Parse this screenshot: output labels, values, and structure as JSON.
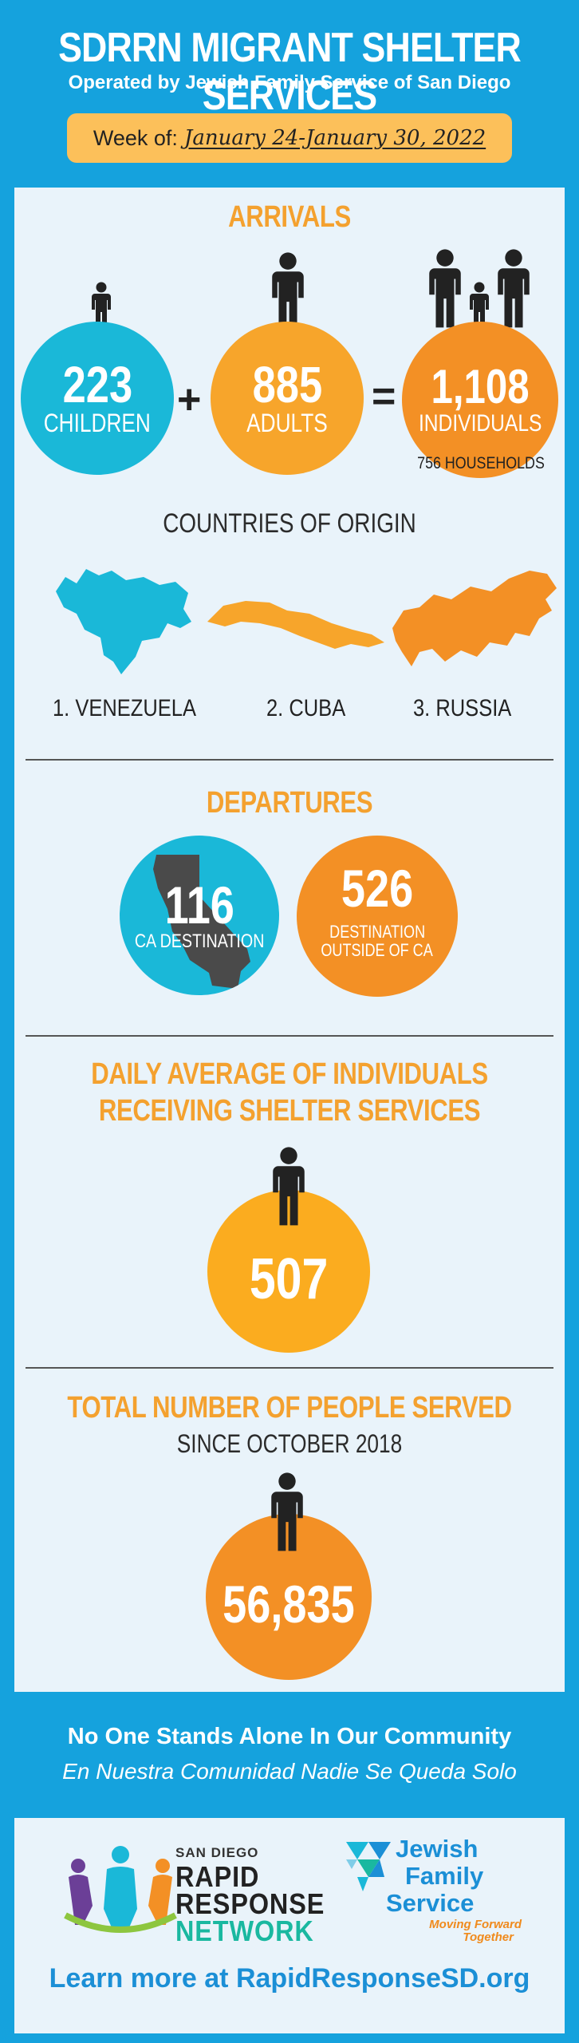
{
  "header": {
    "title": "SDRRN MIGRANT SHELTER SERVICES",
    "subtitle": "Operated by Jewish Family Service of San Diego",
    "week_label": "Week of:",
    "week_dates": "January 24-January 30, 2022"
  },
  "arrivals": {
    "title": "ARRIVALS",
    "children": {
      "value": "223",
      "label": "CHILDREN"
    },
    "plus": "+",
    "adults": {
      "value": "885",
      "label": "ADULTS"
    },
    "equals": "=",
    "individuals": {
      "value": "1,108",
      "label": "INDIVIDUALS"
    },
    "households": "756 HOUSEHOLDS"
  },
  "origin": {
    "title": "COUNTRIES OF ORIGIN",
    "countries": [
      "1. VENEZUELA",
      "2. CUBA",
      "3. RUSSIA"
    ]
  },
  "departures": {
    "title": "DEPARTURES",
    "ca": {
      "value": "116",
      "label": "CA DESTINATION"
    },
    "outside": {
      "value": "526",
      "label_line1": "DESTINATION",
      "label_line2": "OUTSIDE OF CA"
    }
  },
  "daily": {
    "title_line1": "DAILY AVERAGE OF INDIVIDUALS",
    "title_line2": "RECEIVING SHELTER SERVICES",
    "value": "507"
  },
  "total": {
    "title": "TOTAL NUMBER OF PEOPLE SERVED",
    "subtitle": "SINCE OCTOBER 2018",
    "value": "56,835"
  },
  "footer": {
    "line1": "No One Stands Alone In Our Community",
    "line2": "En Nuestra Comunidad Nadie Se Queda Solo",
    "rrn_small": "SAN DIEGO",
    "rrn_line1": "RAPID",
    "rrn_line2": "RESPONSE",
    "rrn_line3": "NETWORK",
    "jfs_line1": "Jewish",
    "jfs_line2": "Family",
    "jfs_line3": "Service",
    "jfs_tag1": "Moving Forward",
    "jfs_tag2": "Together",
    "learn_more": "Learn more at RapidResponseSD.org"
  },
  "colors": {
    "blue": "#15a2dd",
    "cyan": "#1ab8d8",
    "orange": "#f7a52b",
    "deep_orange": "#f39025",
    "panel": "#e9f3fa"
  }
}
